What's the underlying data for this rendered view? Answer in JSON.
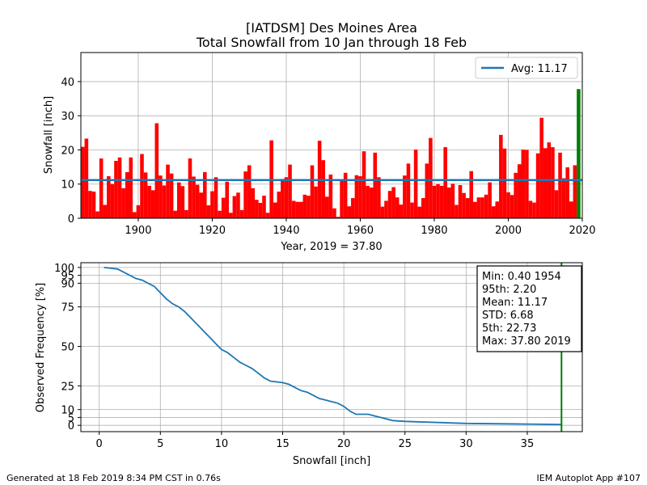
{
  "title_line1": "[IATDSM] Des Moines Area",
  "title_line2": "Total Snowfall from 10 Jan through 18 Feb",
  "footer_left": "Generated at 18 Feb 2019 8:34 PM CST in 0.76s",
  "footer_right": "IEM Autoplot App #107",
  "colors": {
    "bars": "#ff0000",
    "current_bar": "#008000",
    "line": "#1f77b4",
    "grid": "#b0b0b0"
  },
  "chart_data": [
    {
      "type": "bar",
      "xlabel": "Year, 2019 = 37.80",
      "ylabel": "Snowfall [inch]",
      "xlim": [
        1884.5,
        2020
      ],
      "ylim": [
        0,
        48.5
      ],
      "xticks": [
        1900,
        1920,
        1940,
        1960,
        1980,
        2000,
        2020
      ],
      "yticks": [
        0,
        10,
        20,
        30,
        40
      ],
      "legend": {
        "label": "Avg: 11.17",
        "placement": "top-right"
      },
      "average": 11.17,
      "grid": true,
      "years": [
        1884,
        1885,
        1886,
        1887,
        1888,
        1889,
        1890,
        1891,
        1892,
        1893,
        1894,
        1895,
        1896,
        1897,
        1898,
        1899,
        1900,
        1901,
        1902,
        1903,
        1904,
        1905,
        1906,
        1907,
        1908,
        1909,
        1910,
        1911,
        1912,
        1913,
        1914,
        1915,
        1916,
        1917,
        1918,
        1919,
        1920,
        1921,
        1922,
        1923,
        1924,
        1925,
        1926,
        1927,
        1928,
        1929,
        1930,
        1931,
        1932,
        1933,
        1934,
        1935,
        1936,
        1937,
        1938,
        1939,
        1940,
        1941,
        1942,
        1943,
        1944,
        1945,
        1946,
        1947,
        1948,
        1949,
        1950,
        1951,
        1952,
        1953,
        1954,
        1955,
        1956,
        1957,
        1958,
        1959,
        1960,
        1961,
        1962,
        1963,
        1964,
        1965,
        1966,
        1967,
        1968,
        1969,
        1970,
        1971,
        1972,
        1973,
        1974,
        1975,
        1976,
        1977,
        1978,
        1979,
        1980,
        1981,
        1982,
        1983,
        1984,
        1985,
        1986,
        1987,
        1988,
        1989,
        1990,
        1991,
        1992,
        1993,
        1994,
        1995,
        1996,
        1997,
        1998,
        1999,
        2000,
        2001,
        2002,
        2003,
        2004,
        2005,
        2006,
        2007,
        2008,
        2009,
        2010,
        2011,
        2012,
        2013,
        2014,
        2015,
        2016,
        2017,
        2018,
        2019
      ],
      "values": [
        20.8,
        20.9,
        23.3,
        8.0,
        7.8,
        2.0,
        17.5,
        3.9,
        12.3,
        10.0,
        16.8,
        17.8,
        8.8,
        13.5,
        17.8,
        1.8,
        3.8,
        18.8,
        13.4,
        9.5,
        8.2,
        27.8,
        12.5,
        9.6,
        15.7,
        13.1,
        2.2,
        10.5,
        9.4,
        2.4,
        17.5,
        12.2,
        9.8,
        7.5,
        13.5,
        3.8,
        7.9,
        12.0,
        2.2,
        6.0,
        10.7,
        1.6,
        6.5,
        7.5,
        2.4,
        13.7,
        15.5,
        8.8,
        5.4,
        4.5,
        6.6,
        1.6,
        22.8,
        4.6,
        7.8,
        11.5,
        12.0,
        15.7,
        5.1,
        4.8,
        4.8,
        6.9,
        6.6,
        15.5,
        9.3,
        22.7,
        17.0,
        6.3,
        12.8,
        2.9,
        0.4,
        11.2,
        13.3,
        3.5,
        5.9,
        12.6,
        12.3,
        19.6,
        9.5,
        9.0,
        19.2,
        12.0,
        3.4,
        5.1,
        8.0,
        9.1,
        6.1,
        4.0,
        12.5,
        16.0,
        4.6,
        20.1,
        3.4,
        5.9,
        16.0,
        23.5,
        9.5,
        10.0,
        9.5,
        20.8,
        9.0,
        10.1,
        3.9,
        9.7,
        7.4,
        5.9,
        13.8,
        4.8,
        6.1,
        6.1,
        6.9,
        10.5,
        3.5,
        4.9,
        24.4,
        20.4,
        7.6,
        6.8,
        13.3,
        15.8,
        20.1,
        20.0,
        5.1,
        4.6,
        19.0,
        29.4,
        20.5,
        22.2,
        20.8,
        8.2,
        19.2,
        11.7,
        14.9,
        4.9,
        15.5,
        37.8
      ]
    },
    {
      "type": "line",
      "xlabel": "Snowfall [inch]",
      "ylabel": "Observed Frequency [%]",
      "xlim": [
        -1.5,
        39.5
      ],
      "ylim": [
        -4,
        103
      ],
      "xticks": [
        0,
        5,
        10,
        15,
        20,
        25,
        30,
        35
      ],
      "yticks": [
        0,
        5,
        10,
        25,
        50,
        75,
        90,
        95,
        100
      ],
      "current_value": 37.8,
      "grid": true,
      "x": [
        0.4,
        1.5,
        2.0,
        2.5,
        3.0,
        3.5,
        4.0,
        4.5,
        5.0,
        5.5,
        6.0,
        6.5,
        7.0,
        7.5,
        8.0,
        8.5,
        9.0,
        9.5,
        10.0,
        10.5,
        11.0,
        11.5,
        12.0,
        12.5,
        13.0,
        13.5,
        14.0,
        15.0,
        15.5,
        16.0,
        16.5,
        17.0,
        17.5,
        18.0,
        18.5,
        19.0,
        19.5,
        20.0,
        20.5,
        21.0,
        22.0,
        22.5,
        23.0,
        24.0,
        25.0,
        27.0,
        30.0,
        35.0,
        37.8
      ],
      "y": [
        100,
        99,
        97,
        95,
        93,
        92,
        90,
        88,
        84,
        80,
        77,
        75,
        72,
        68,
        64,
        60,
        56,
        52,
        48,
        46,
        43,
        40,
        38,
        36,
        33,
        30,
        28,
        27,
        26,
        24,
        22,
        21,
        19,
        17,
        16,
        15,
        14,
        12,
        9,
        7,
        7,
        6,
        5,
        3,
        2.5,
        2,
        1.2,
        0.8,
        0.5
      ]
    }
  ],
  "stats": [
    "Min: 0.40 1954",
    "95th: 2.20",
    "Mean: 11.17",
    "STD: 6.68",
    "5th: 22.73",
    "Max: 37.80 2019"
  ]
}
